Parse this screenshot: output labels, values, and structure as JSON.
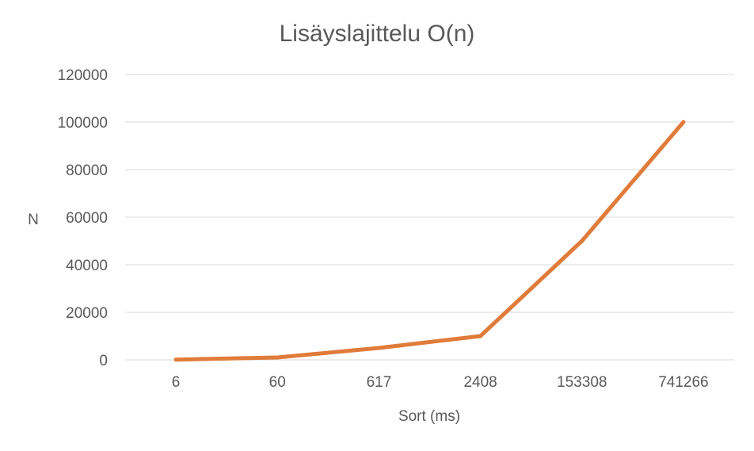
{
  "chart_data": {
    "type": "line",
    "title": "Lisäyslajittelu O(n)",
    "xlabel": "Sort (ms)",
    "ylabel": "N",
    "categories": [
      "6",
      "60",
      "617",
      "2408",
      "153308",
      "741266"
    ],
    "series": [
      {
        "values": [
          100,
          1000,
          5000,
          10000,
          50000,
          100000
        ],
        "color": "#e07b39"
      }
    ],
    "ylim": [
      0,
      120000
    ],
    "yticks": [
      0,
      20000,
      40000,
      60000,
      80000,
      100000,
      120000
    ],
    "grid": true,
    "legend": "none"
  }
}
